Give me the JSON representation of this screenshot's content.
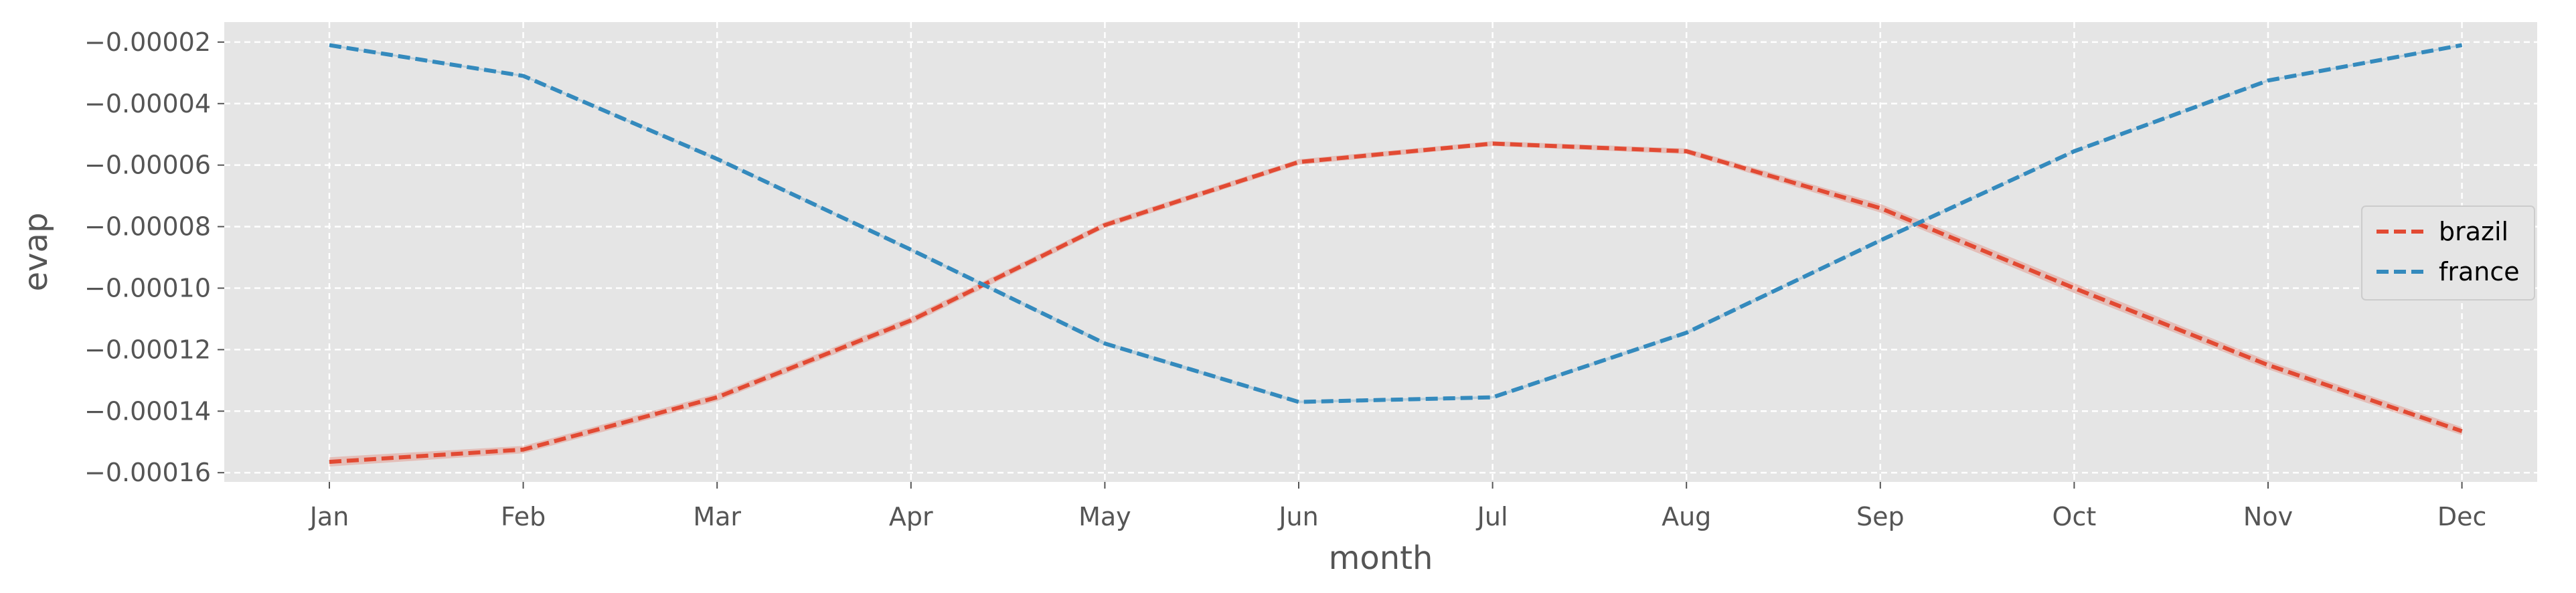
{
  "chart_data": {
    "type": "line",
    "xlabel": "month",
    "ylabel": "evap",
    "categories": [
      "Jan",
      "Feb",
      "Mar",
      "Apr",
      "May",
      "Jun",
      "Jul",
      "Aug",
      "Sep",
      "Oct",
      "Nov",
      "Dec"
    ],
    "ylim": [
      -0.000163,
      -1.35e-05
    ],
    "yticks": [
      -2e-05,
      -4e-05,
      -6e-05,
      -8e-05,
      -0.0001,
      -0.00012,
      -0.00014,
      -0.00016
    ],
    "ytick_labels": [
      "−0.00002",
      "−0.00004",
      "−0.00006",
      "−0.00008",
      "−0.00010",
      "−0.00012",
      "−0.00014",
      "−0.00016"
    ],
    "grid": true,
    "line_style": "dashed",
    "legend_position": "center-right",
    "background_color": "#e5e5e5",
    "series": [
      {
        "name": "brazil",
        "color": "#e24a33",
        "values": [
          -0.0001565,
          -0.0001525,
          -0.0001355,
          -0.0001105,
          -7.95e-05,
          -5.9e-05,
          -5.3e-05,
          -5.55e-05,
          -7.4e-05,
          -0.0001,
          -0.000125,
          -0.0001465
        ],
        "ci_half_width": [
          1.5e-06,
          1.2e-06,
          1.2e-06,
          1.2e-06,
          1e-06,
          9e-07,
          8e-07,
          9e-07,
          1.4e-06,
          1.6e-06,
          1.4e-06,
          1.3e-06
        ]
      },
      {
        "name": "france",
        "color": "#348abd",
        "values": [
          -2.1e-05,
          -3.1e-05,
          -5.8e-05,
          -8.75e-05,
          -0.000118,
          -0.000137,
          -0.0001355,
          -0.0001145,
          -8.45e-05,
          -5.55e-05,
          -3.25e-05,
          -2.1e-05
        ],
        "ci_half_width": [
          3e-07,
          3e-07,
          4e-07,
          4e-07,
          6e-07,
          4e-07,
          4e-07,
          5e-07,
          4e-07,
          3e-07,
          3e-07,
          3e-07
        ]
      }
    ]
  }
}
